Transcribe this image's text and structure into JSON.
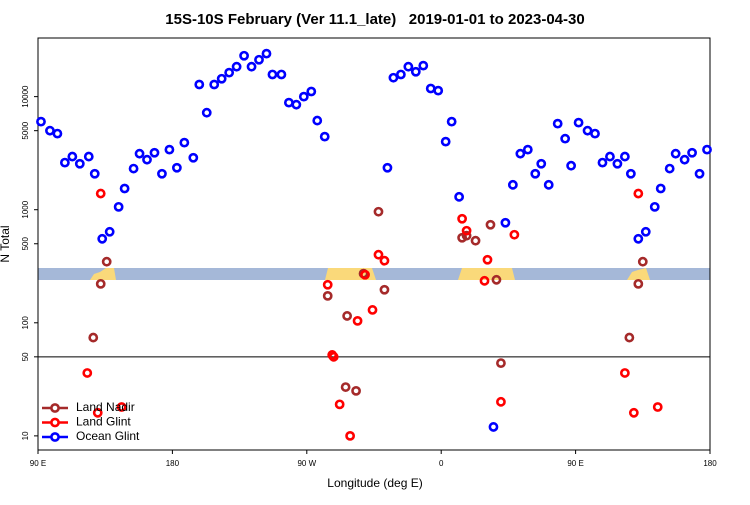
{
  "chart_data": {
    "type": "scatter",
    "title": "15S-10S February (Ver 11.1_late)   2019-01-01 to 2023-04-30",
    "x_label": "Longitude (deg E)",
    "y_label": "N Total",
    "xlim": [
      90,
      540
    ],
    "xticks": [
      {
        "value": 90,
        "label": "90 E"
      },
      {
        "value": 180,
        "label": "180"
      },
      {
        "value": 270,
        "label": "90 W"
      },
      {
        "value": 360,
        "label": "0"
      },
      {
        "value": 450,
        "label": "90 E"
      },
      {
        "value": 540,
        "label": "180"
      }
    ],
    "ylim": [
      7.5,
      33000
    ],
    "log_y": true,
    "yticks": [
      10,
      50,
      100,
      500,
      1000,
      5000,
      10000
    ],
    "hline": 50,
    "legend": "lower left",
    "series": [
      {
        "name": "Land Nadir",
        "color": "#a52a2a",
        "x": [
          136,
          132,
          127,
          284,
          297,
          308,
          318,
          322,
          296,
          303,
          374,
          377,
          383,
          393,
          397,
          400,
          495,
          492,
          486
        ],
        "values": [
          347,
          221,
          74,
          173,
          115,
          272,
          960,
          196,
          27,
          25,
          565,
          589,
          532,
          736,
          240,
          44,
          347,
          221,
          74
        ]
      },
      {
        "name": "Land Glint",
        "color": "#ff0000",
        "x": [
          132,
          123,
          130,
          146,
          284,
          287,
          288,
          292,
          299,
          304,
          309,
          314,
          318,
          322,
          374,
          377,
          391,
          389,
          409,
          400,
          492,
          483,
          489,
          505
        ],
        "values": [
          1390,
          36,
          16,
          18,
          217,
          52,
          50,
          19,
          10,
          104,
          266,
          130,
          400,
          354,
          832,
          652,
          361,
          235,
          601,
          20,
          1390,
          36,
          16,
          18
        ]
      },
      {
        "name": "Ocean Glint",
        "color": "#0000ff",
        "x": [
          92,
          98,
          103,
          108,
          113,
          118,
          124,
          128,
          133,
          138,
          144,
          148,
          154,
          158,
          163,
          168,
          173,
          178,
          183,
          188,
          194,
          198,
          203,
          208,
          213,
          218,
          223,
          228,
          233,
          238,
          243,
          247,
          253,
          258,
          263,
          268,
          273,
          277,
          282,
          324,
          328,
          333,
          338,
          343,
          348,
          353,
          358,
          363,
          367,
          372,
          395,
          403,
          408,
          413,
          418,
          423,
          427,
          432,
          438,
          443,
          447,
          452,
          458,
          463,
          468,
          473,
          478,
          483,
          487,
          492,
          497,
          503,
          507,
          513,
          517,
          523,
          528,
          533,
          538
        ],
        "values": [
          6010,
          5000,
          4710,
          2610,
          2950,
          2550,
          2950,
          2080,
          553,
          638,
          1060,
          1540,
          2310,
          3130,
          2770,
          3190,
          2080,
          3400,
          2350,
          3920,
          2880,
          12800,
          7210,
          12800,
          14400,
          16300,
          18400,
          23000,
          18400,
          21200,
          24000,
          15700,
          15700,
          8850,
          8490,
          10000,
          11100,
          6140,
          4430,
          2350,
          14700,
          15700,
          18400,
          16600,
          18800,
          11800,
          11300,
          4000,
          6010,
          1300,
          12,
          767,
          1660,
          3130,
          3400,
          2080,
          2550,
          1660,
          5770,
          4250,
          2450,
          5890,
          5000,
          4710,
          2610,
          2950,
          2550,
          2950,
          2080,
          553,
          638,
          1060,
          1540,
          2310,
          3130,
          2770,
          3190,
          2080,
          3400
        ]
      }
    ]
  }
}
